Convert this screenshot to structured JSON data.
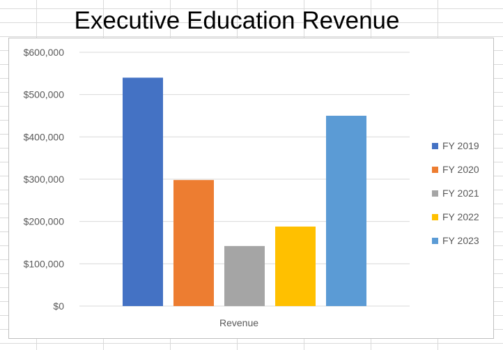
{
  "chart_data": {
    "type": "bar",
    "title": "Executive Education Revenue",
    "xlabel": "",
    "ylabel": "",
    "categories": [
      "Revenue"
    ],
    "series": [
      {
        "name": "FY 2019",
        "values": [
          540000
        ],
        "color": "#4472C4"
      },
      {
        "name": "FY 2020",
        "values": [
          298000
        ],
        "color": "#ED7D31"
      },
      {
        "name": "FY 2021",
        "values": [
          142000
        ],
        "color": "#A5A5A5"
      },
      {
        "name": "FY 2022",
        "values": [
          188000
        ],
        "color": "#FFC000"
      },
      {
        "name": "FY 2023",
        "values": [
          450000
        ],
        "color": "#5B9BD5"
      }
    ],
    "ylim": [
      0,
      600000
    ],
    "yticks": [
      0,
      100000,
      200000,
      300000,
      400000,
      500000,
      600000
    ],
    "ytick_labels": [
      "$0",
      "$100,000",
      "$200,000",
      "$300,000",
      "$400,000",
      "$500,000",
      "$600,000"
    ],
    "grid": true,
    "legend_position": "right"
  }
}
